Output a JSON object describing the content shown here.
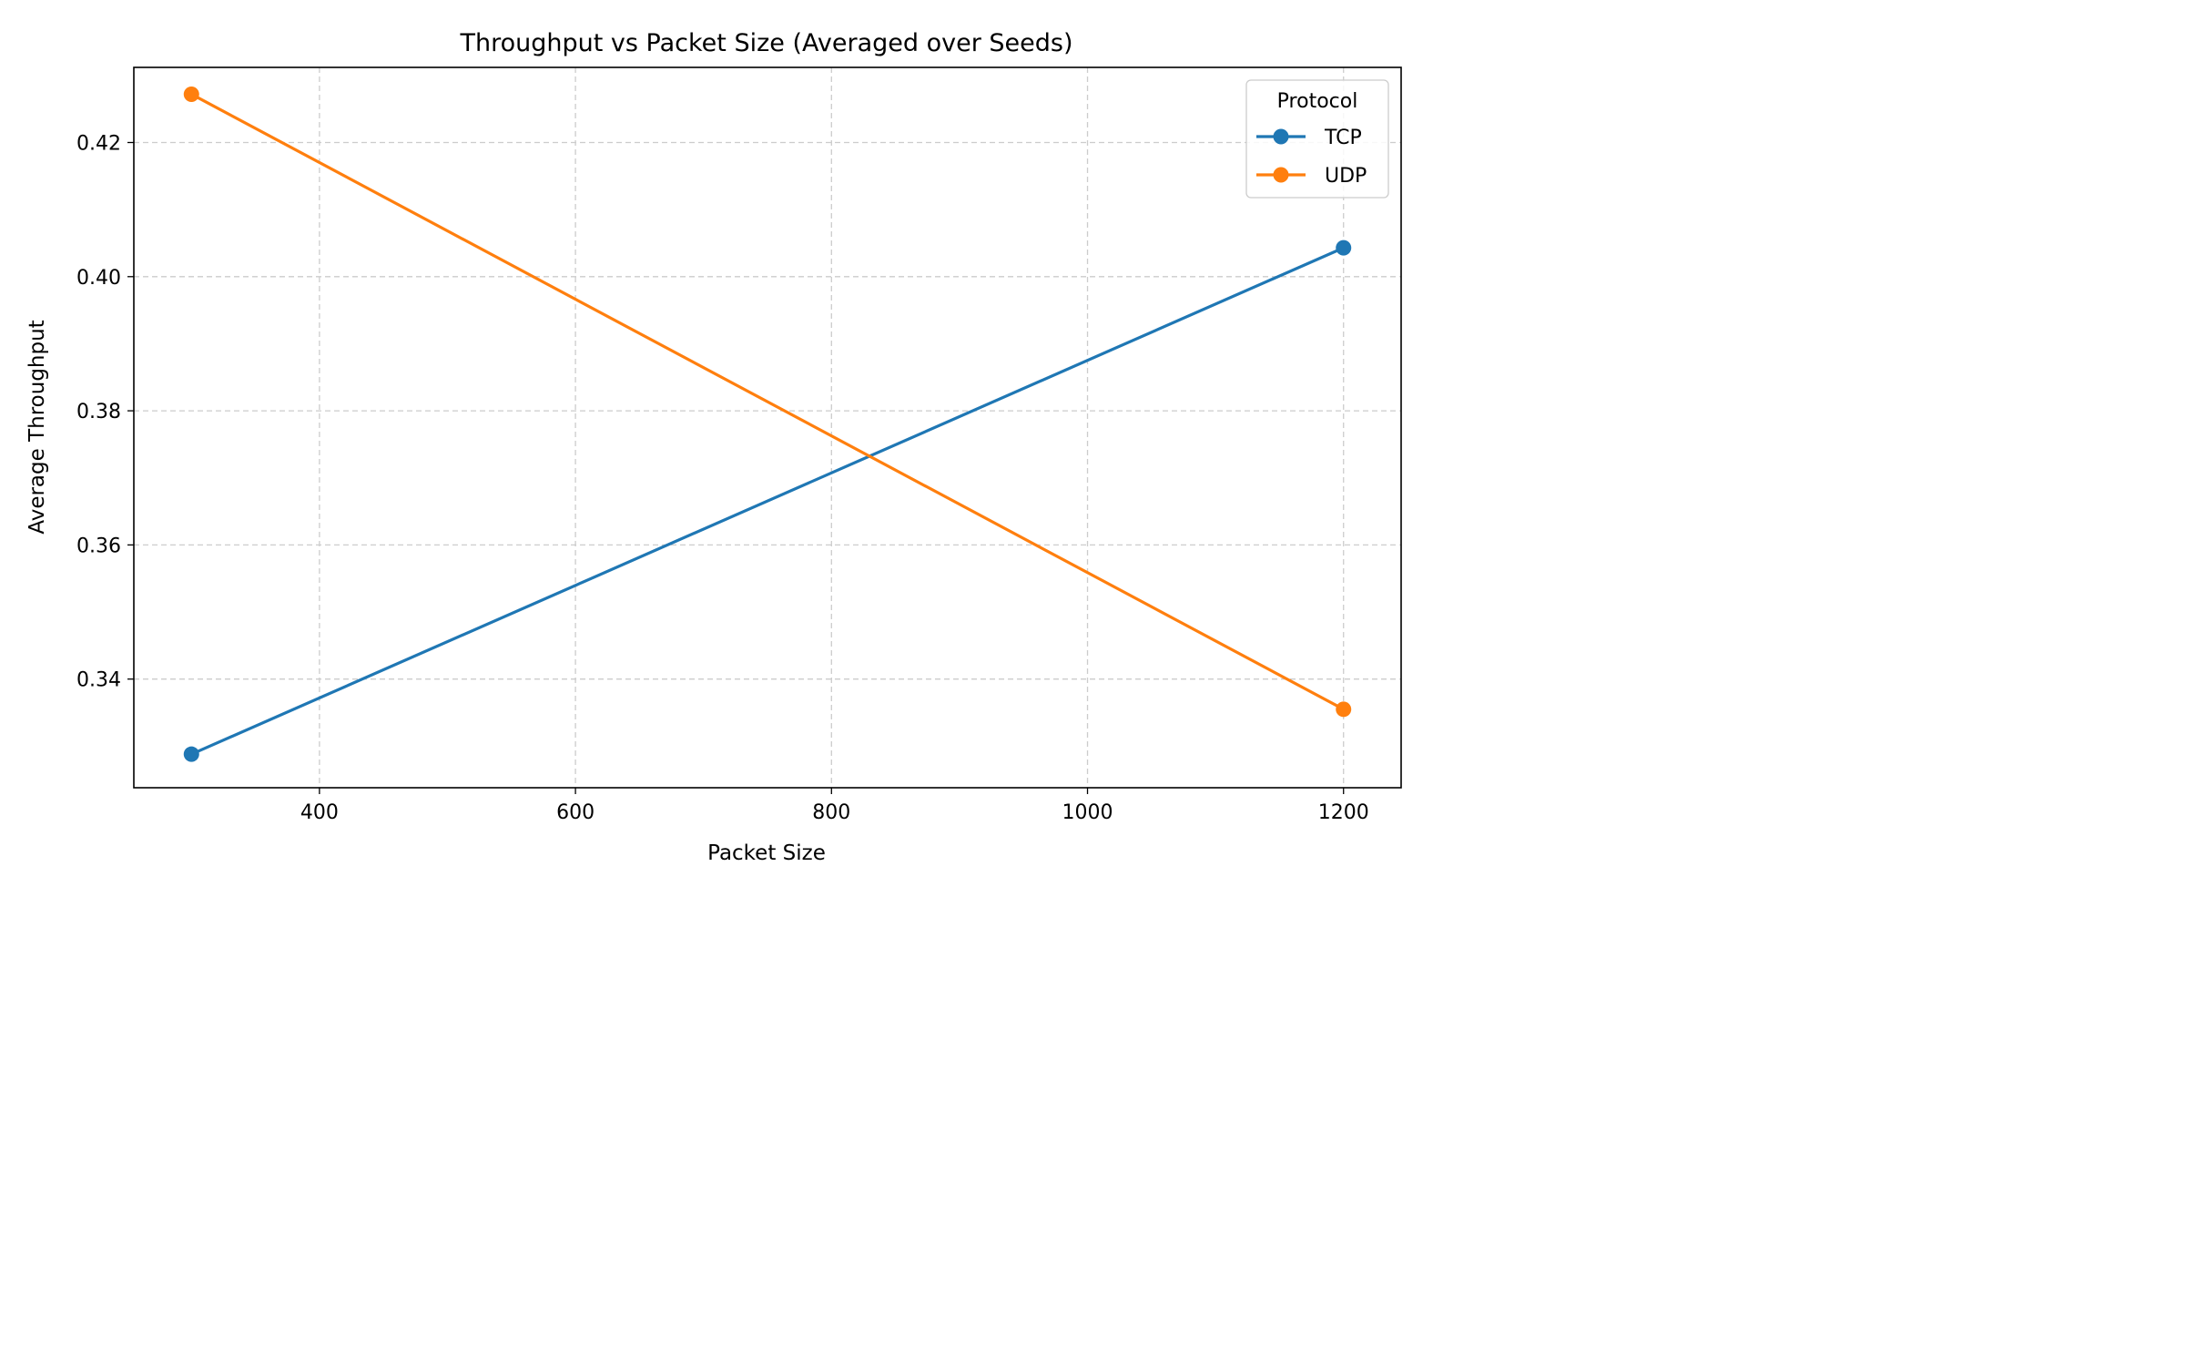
{
  "chart_data": {
    "type": "line",
    "title": "Throughput vs Packet Size (Averaged over Seeds)",
    "xlabel": "Packet Size",
    "ylabel": "Average Throughput",
    "x": [
      300,
      1200
    ],
    "xlim": [
      255,
      1245
    ],
    "ylim": [
      0.3238,
      0.4312
    ],
    "xticks": [
      400,
      600,
      800,
      1000,
      1200
    ],
    "yticks": [
      0.34,
      0.36,
      0.38,
      0.4,
      0.42
    ],
    "xtick_labels": [
      "400",
      "600",
      "800",
      "1000",
      "1200"
    ],
    "ytick_labels": [
      "0.34",
      "0.36",
      "0.38",
      "0.40",
      "0.42"
    ],
    "grid": true,
    "legend": {
      "title": "Protocol",
      "position": "top-right"
    },
    "series": [
      {
        "name": "TCP",
        "values": [
          0.3288,
          0.4043
        ],
        "color": "#1f77b4"
      },
      {
        "name": "UDP",
        "values": [
          0.4272,
          0.3355
        ],
        "color": "#ff7f0e"
      }
    ]
  }
}
